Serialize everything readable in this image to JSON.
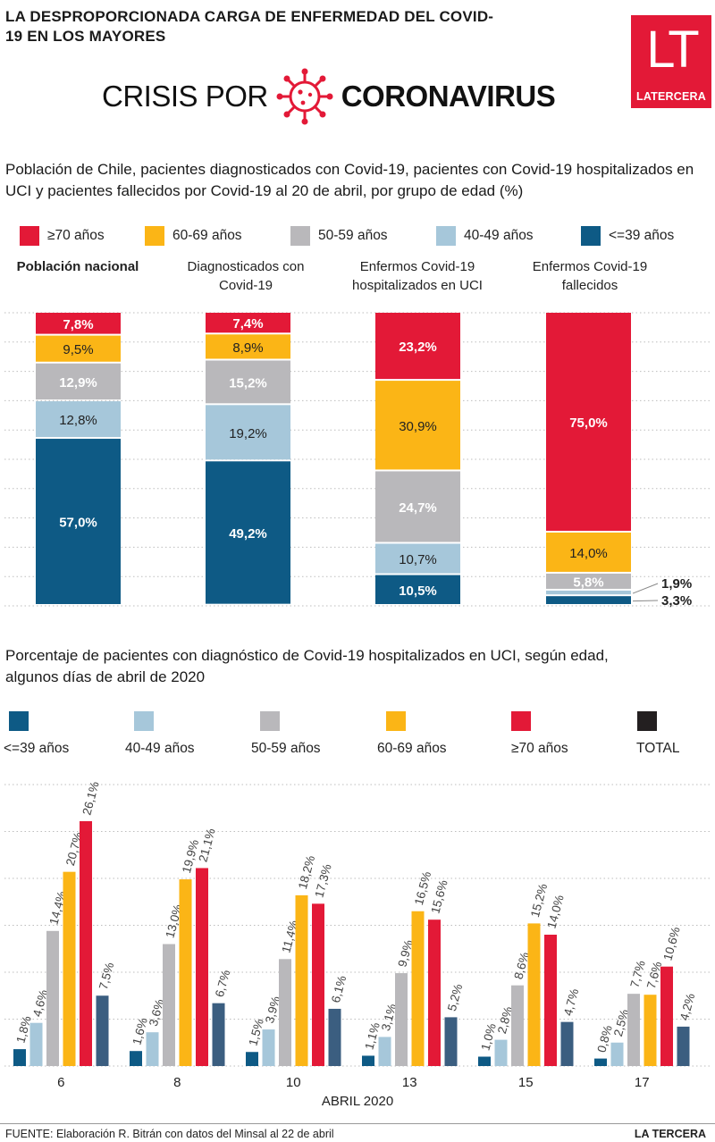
{
  "header": {
    "headline": "LA DESPROPORCIONADA CARGA DE ENFERMEDAD DEL COVID-19 EN LOS MAYORES",
    "crisis_prefix": "CRISIS POR",
    "crisis_main": "CORONAVIRUS",
    "logo_mark": "LT",
    "logo_name": "LATERCERA"
  },
  "colors": {
    "age70": "#e31937",
    "age60": "#fbb516",
    "age50": "#b9b8bb",
    "age40": "#a6c7da",
    "age39": "#0e5a85",
    "total": "#231f20",
    "grid": "#bdbdbd"
  },
  "section1": {
    "subtitle": "Población de Chile, pacientes diagnosticados con Covid-19, pacientes con Covid-19 hospitalizados en UCI y pacientes fallecidos por Covid-19 al 20 de abril, por grupo de edad (%)",
    "legend": [
      "≥70 años",
      "60-69 años",
      "50-59 años",
      "40-49 años",
      "<=39 años"
    ],
    "panel_titles": [
      "Población nacional",
      "Diagnosticados con Covid-19",
      "Enfermos Covid-19 hospitalizados en UCI",
      "Enfermos Covid-19 fallecidos"
    ]
  },
  "section2": {
    "subtitle": "Porcentaje de pacientes con diagnóstico de Covid-19 hospitalizados en UCI, según edad, algunos días de abril de 2020",
    "legend": [
      "<=39 años",
      "40-49 años",
      "50-59 años",
      "60-69 años",
      "≥70 años",
      "TOTAL"
    ],
    "x_title": "ABRIL 2020"
  },
  "chart_data": [
    {
      "type": "bar",
      "stacked": true,
      "categories": [
        "Población nacional",
        "Diagnosticados con Covid-19",
        "Enfermos Covid-19 hospitalizados en UCI",
        "Enfermos Covid-19 fallecidos"
      ],
      "series": [
        {
          "name": "≥70 años",
          "values": [
            7.8,
            7.4,
            23.2,
            75.0
          ],
          "labels": [
            "7,8%",
            "7,4%",
            "23,2%",
            "75,0%"
          ]
        },
        {
          "name": "60-69 años",
          "values": [
            9.5,
            8.9,
            30.9,
            14.0
          ],
          "labels": [
            "9,5%",
            "8,9%",
            "30,9%",
            "14,0%"
          ]
        },
        {
          "name": "50-59 años",
          "values": [
            12.9,
            15.2,
            24.7,
            5.8
          ],
          "labels": [
            "12,9%",
            "15,2%",
            "24,7%",
            "5,8%"
          ]
        },
        {
          "name": "40-49 años",
          "values": [
            12.8,
            19.2,
            10.7,
            1.9
          ],
          "labels": [
            "12,8%",
            "19,2%",
            "10,7%",
            "1,9%"
          ]
        },
        {
          "name": "<=39 años",
          "values": [
            57.0,
            49.2,
            10.5,
            3.3
          ],
          "labels": [
            "57,0%",
            "49,2%",
            "10,5%",
            "3,3%"
          ]
        }
      ],
      "ylim": [
        0,
        100
      ],
      "grid": true,
      "legend_position": "top"
    },
    {
      "type": "bar",
      "categories": [
        "6",
        "8",
        "10",
        "13",
        "15",
        "17"
      ],
      "xlabel": "ABRIL 2020",
      "series": [
        {
          "name": "<=39 años",
          "values": [
            1.8,
            1.6,
            1.5,
            1.1,
            1.0,
            0.8
          ],
          "labels": [
            "1,8%",
            "1,6%",
            "1,5%",
            "1,1%",
            "1,0%",
            "0,8%"
          ]
        },
        {
          "name": "40-49 años",
          "values": [
            4.6,
            3.6,
            3.9,
            3.1,
            2.8,
            2.5
          ],
          "labels": [
            "4,6%",
            "3,6%",
            "3,9%",
            "3,1%",
            "2,8%",
            "2,5%"
          ]
        },
        {
          "name": "50-59 años",
          "values": [
            14.4,
            13.0,
            11.4,
            9.9,
            8.6,
            7.7
          ],
          "labels": [
            "14,4%",
            "13,0%",
            "11,4%",
            "9,9%",
            "8,6%",
            "7,7%"
          ]
        },
        {
          "name": "60-69 años",
          "values": [
            20.7,
            19.9,
            18.2,
            16.5,
            15.2,
            7.6
          ],
          "labels": [
            "20,7%",
            "19,9%",
            "18,2%",
            "16,5%",
            "15,2%",
            "7,6%"
          ]
        },
        {
          "name": "≥70 años",
          "values": [
            26.1,
            21.1,
            17.3,
            15.6,
            14.0,
            10.6
          ],
          "labels": [
            "26,1%",
            "21,1%",
            "17,3%",
            "15,6%",
            "14,0%",
            "10,6%"
          ]
        },
        {
          "name": "TOTAL",
          "values": [
            7.5,
            6.7,
            6.1,
            5.2,
            4.7,
            4.2
          ],
          "labels": [
            "7,5%",
            "6,7%",
            "6,1%",
            "5,2%",
            "4,7%",
            "4,2%"
          ]
        }
      ],
      "ylim": [
        0,
        30
      ],
      "grid": true,
      "legend_position": "top"
    }
  ],
  "footer": {
    "source": "FUENTE: Elaboración R. Bitrán con datos del Minsal al 22 de abril",
    "brand": "LA TERCERA"
  }
}
